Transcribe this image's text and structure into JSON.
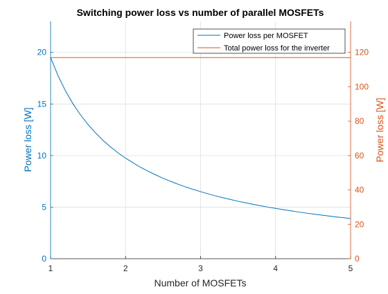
{
  "chart_data": {
    "type": "line",
    "title": "Switching power loss vs number of parallel MOSFETs",
    "xlabel": "Number of MOSFETs",
    "xlim": [
      1,
      5
    ],
    "xticks": [
      1,
      2,
      3,
      4,
      5
    ],
    "y_left": {
      "label": "Power loss [W]",
      "lim": [
        0,
        23
      ],
      "ticks": [
        0,
        5,
        10,
        15,
        20
      ],
      "color": "#0072BD"
    },
    "y_right": {
      "label": "Power loss [W]",
      "lim": [
        0,
        138
      ],
      "ticks": [
        0,
        20,
        40,
        60,
        80,
        100,
        120
      ],
      "color": "#D95319"
    },
    "grid": true,
    "legend_position": "top-right",
    "series": [
      {
        "name": "Power loss per MOSFET",
        "axis": "left",
        "color": "#0072BD",
        "x": [
          1,
          1.1,
          1.2,
          1.3,
          1.4,
          1.5,
          1.6,
          1.7,
          1.8,
          1.9,
          2,
          2.1,
          2.2,
          2.3,
          2.4,
          2.5,
          2.6,
          2.7,
          2.8,
          2.9,
          3,
          3.1,
          3.2,
          3.3,
          3.4,
          3.5,
          3.6,
          3.7,
          3.8,
          3.9,
          4,
          4.1,
          4.2,
          4.3,
          4.4,
          4.5,
          4.6,
          4.7,
          4.8,
          4.9,
          5
        ],
        "y": [
          19.5,
          17.73,
          16.25,
          15.0,
          13.93,
          13.0,
          12.19,
          11.47,
          10.83,
          10.26,
          9.75,
          9.29,
          8.86,
          8.48,
          8.13,
          7.8,
          7.5,
          7.22,
          6.96,
          6.72,
          6.5,
          6.29,
          6.09,
          5.91,
          5.74,
          5.57,
          5.42,
          5.27,
          5.13,
          5.0,
          4.88,
          4.76,
          4.64,
          4.53,
          4.43,
          4.33,
          4.24,
          4.15,
          4.06,
          3.98,
          3.9
        ]
      },
      {
        "name": "Total power loss for the inverter",
        "axis": "right",
        "color": "#D95319",
        "x": [
          1,
          5
        ],
        "y": [
          117,
          117
        ]
      }
    ]
  }
}
